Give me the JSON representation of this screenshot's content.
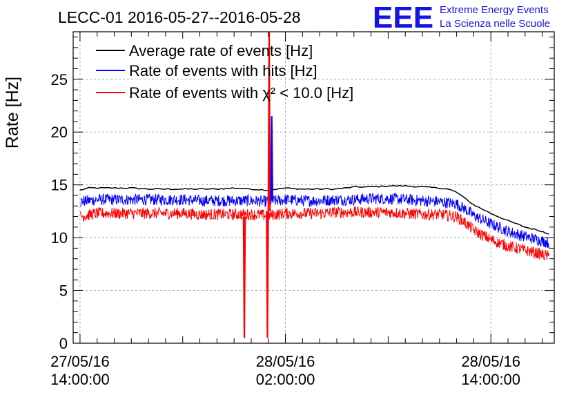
{
  "header": {
    "logo": "EEE",
    "org_line1": "Extreme Energy Events",
    "org_line2": "La Scienza nelle Scuole"
  },
  "colors": {
    "average": "#000000",
    "hits": "#0000ff",
    "chi2": "#ff0000",
    "logo": "#1414e6"
  },
  "chart_data": {
    "type": "line",
    "title": "LECC-01 2016-05-27--2016-05-28",
    "ylabel": "Rate [Hz]",
    "xlabel": "",
    "ylim": [
      0,
      29.5
    ],
    "xlim_hours": [
      -0.4,
      27.7
    ],
    "grid": true,
    "legend_position": "top-left",
    "yticks": [
      0,
      5,
      10,
      15,
      20,
      25
    ],
    "xticks": [
      {
        "h": 0,
        "line1": "27/05/16",
        "line2": "14:00:00"
      },
      {
        "h": 12,
        "line1": "28/05/16",
        "line2": "02:00:00"
      },
      {
        "h": 24,
        "line1": "28/05/16",
        "line2": "14:00:00"
      }
    ],
    "series": [
      {
        "name": "Average rate of events [Hz]",
        "key": "average",
        "x_hours": [
          0,
          0.5,
          1,
          2,
          3,
          4,
          5,
          6,
          7,
          8,
          9,
          10,
          11,
          12,
          13,
          14,
          15,
          16,
          17,
          18,
          19,
          20,
          21,
          21.5,
          22,
          22.5,
          23,
          24,
          25,
          26,
          27,
          27.2,
          27.4
        ],
        "values": [
          14.5,
          14.7,
          14.7,
          14.7,
          14.7,
          14.6,
          14.6,
          14.6,
          14.6,
          14.6,
          14.7,
          14.6,
          14.5,
          14.7,
          14.6,
          14.6,
          14.6,
          14.8,
          14.8,
          14.9,
          14.9,
          14.8,
          14.7,
          14.6,
          14.3,
          13.7,
          13.1,
          12.3,
          11.6,
          11.0,
          10.6,
          10.4,
          10.4
        ]
      },
      {
        "name": "Rate of events with hits [Hz]",
        "key": "hits",
        "x_hours": [
          0,
          1,
          2,
          3,
          4,
          5,
          6,
          7,
          8,
          9,
          10,
          11,
          12,
          13,
          14,
          15,
          16,
          17,
          18,
          19,
          20,
          21,
          22,
          22.5,
          23,
          24,
          25,
          26,
          27,
          27.4
        ],
        "values": [
          13.4,
          13.6,
          13.6,
          13.6,
          13.6,
          13.6,
          13.6,
          13.5,
          13.5,
          13.5,
          13.5,
          13.4,
          13.6,
          13.5,
          13.5,
          13.6,
          13.6,
          13.7,
          13.7,
          13.6,
          13.5,
          13.4,
          13.2,
          12.7,
          12.1,
          11.3,
          10.6,
          10.1,
          9.7,
          9.5
        ]
      },
      {
        "name": "Rate of events with χ² < 10.0 [Hz]",
        "key": "chi2",
        "x_hours": [
          0,
          1,
          2,
          3,
          4,
          5,
          6,
          7,
          8,
          9,
          10,
          11,
          12,
          13,
          14,
          15,
          16,
          17,
          18,
          19,
          20,
          21,
          22,
          22.5,
          23,
          24,
          25,
          26,
          27,
          27.4
        ],
        "values": [
          12.0,
          12.3,
          12.3,
          12.3,
          12.3,
          12.3,
          12.3,
          12.2,
          12.2,
          12.2,
          12.2,
          12.1,
          12.3,
          12.3,
          12.3,
          12.4,
          12.4,
          12.4,
          12.4,
          12.3,
          12.2,
          12.2,
          12.0,
          11.4,
          10.7,
          9.8,
          9.2,
          8.8,
          8.4,
          8.2
        ]
      }
    ],
    "spikes": [
      {
        "x_hours": 9.6,
        "values": [
          12.0,
          0.5,
          12.0
        ],
        "series": "chi2"
      },
      {
        "x_hours": 10.95,
        "values": [
          12.5,
          0.5,
          13.0
        ],
        "series": "chi2"
      },
      {
        "x_hours": 11.05,
        "values": [
          13.0,
          29.5,
          12.5
        ],
        "series": "chi2"
      },
      {
        "x_hours": 11.2,
        "values": [
          13.5,
          21.5,
          13.5
        ],
        "series": "hits"
      }
    ],
    "noise_amplitude": {
      "hits": 0.55,
      "chi2": 0.55
    }
  }
}
